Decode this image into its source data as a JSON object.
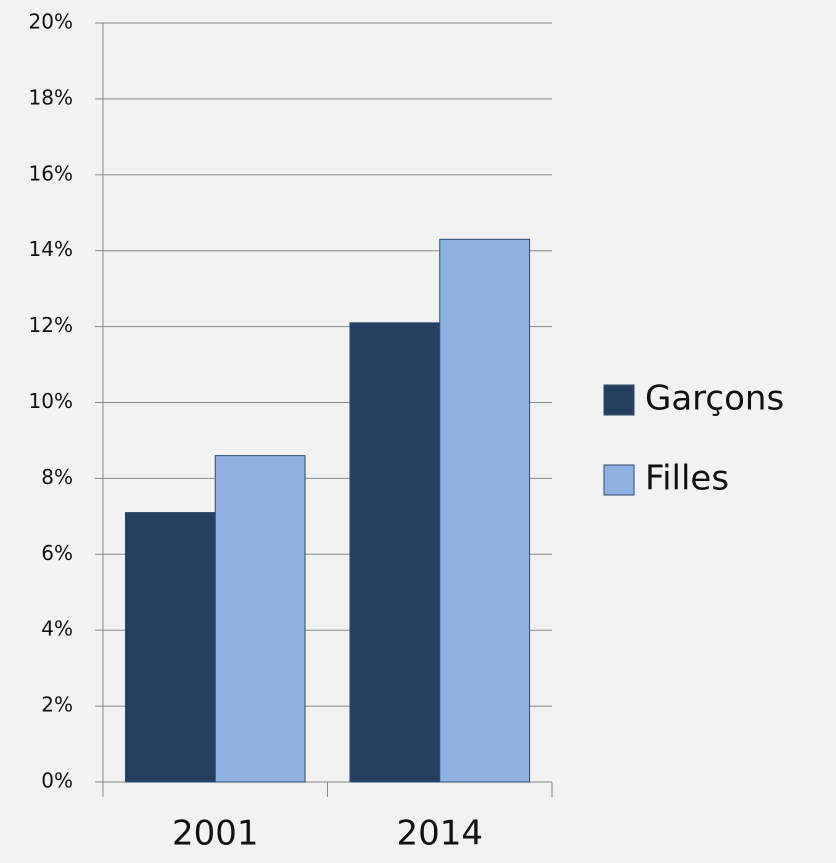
{
  "chart_data": {
    "type": "bar",
    "categories": [
      "2001",
      "2014"
    ],
    "series": [
      {
        "name": "Garçons",
        "color": "#263f61",
        "values": [
          7.1,
          12.1
        ]
      },
      {
        "name": "Filles",
        "color": "#8fb2e2",
        "values": [
          8.6,
          14.3
        ]
      }
    ],
    "ylim": [
      0,
      20
    ],
    "yticks": [
      {
        "value": 0,
        "label": "0%"
      },
      {
        "value": 2,
        "label": "2%"
      },
      {
        "value": 4,
        "label": "4%"
      },
      {
        "value": 6,
        "label": "6%"
      },
      {
        "value": 8,
        "label": "8%"
      },
      {
        "value": 10,
        "label": "10%"
      },
      {
        "value": 12,
        "label": "12%"
      },
      {
        "value": 14,
        "label": "14%"
      },
      {
        "value": 16,
        "label": "16%"
      },
      {
        "value": 18,
        "label": "18%"
      },
      {
        "value": 20,
        "label": "20%"
      }
    ],
    "grid": true,
    "legend": "right"
  }
}
